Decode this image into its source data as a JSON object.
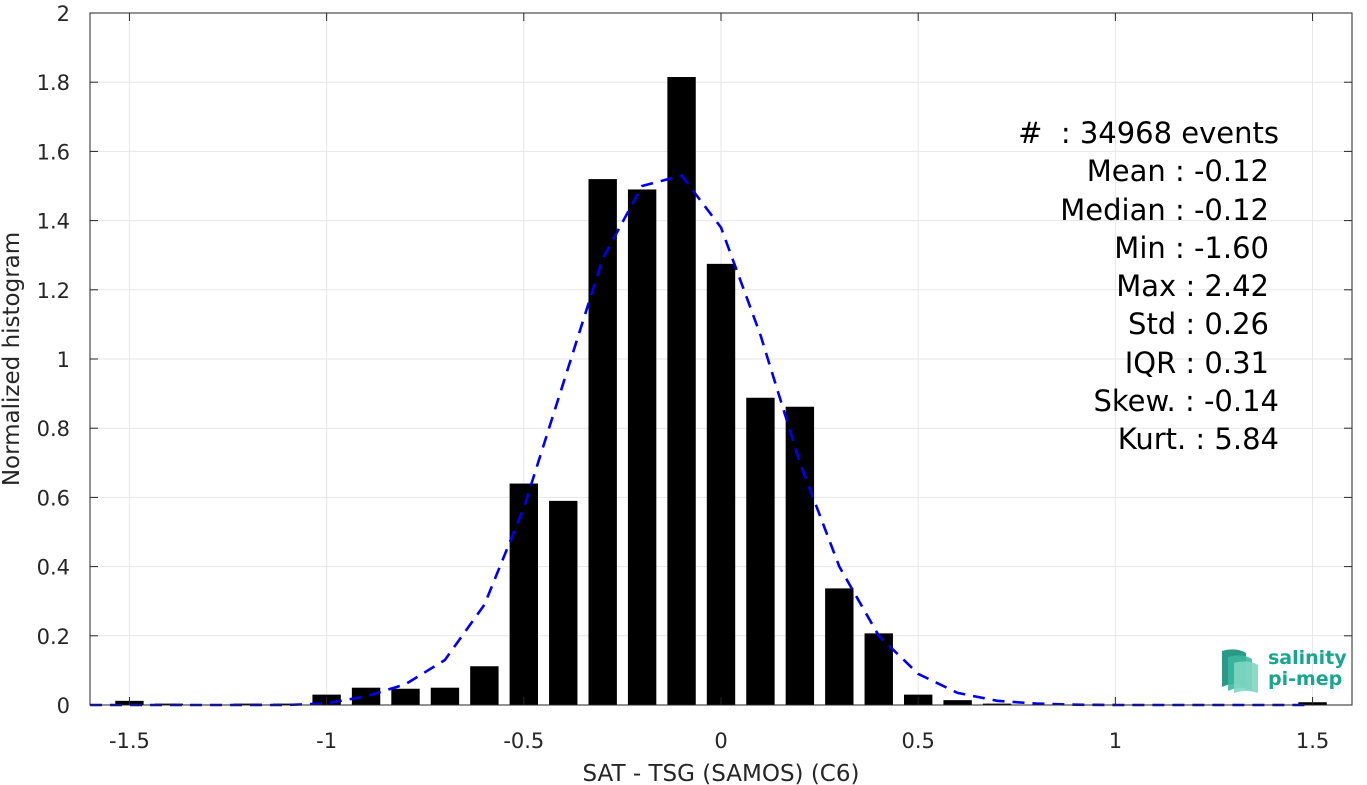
{
  "chart_data": {
    "type": "bar",
    "xlabel": "SAT - TSG (SAMOS) (C6)",
    "ylabel": "Normalized histogram",
    "xlim": [
      -1.6,
      1.6
    ],
    "ylim": [
      0,
      2
    ],
    "xticks": [
      "-1.5",
      "-1",
      "-0.5",
      "0",
      "0.5",
      "1",
      "1.5"
    ],
    "xtick_values": [
      -1.5,
      -1,
      -0.5,
      0,
      0.5,
      1,
      1.5
    ],
    "yticks": [
      "0",
      "0.2",
      "0.4",
      "0.6",
      "0.8",
      "1",
      "1.2",
      "1.4",
      "1.6",
      "1.8",
      "2"
    ],
    "ytick_values": [
      0,
      0.2,
      0.4,
      0.6,
      0.8,
      1,
      1.2,
      1.4,
      1.6,
      1.8,
      2
    ],
    "grid": true,
    "bar_width": 0.072,
    "bars": {
      "x": [
        -1.5,
        -1.4,
        -1.2,
        -1.1,
        -1.0,
        -0.9,
        -0.8,
        -0.7,
        -0.6,
        -0.5,
        -0.4,
        -0.3,
        -0.2,
        -0.1,
        0.0,
        0.1,
        0.2,
        0.3,
        0.4,
        0.5,
        0.6,
        0.7,
        1.5
      ],
      "values": [
        0.012,
        0.004,
        0.004,
        0.004,
        0.03,
        0.05,
        0.047,
        0.05,
        0.112,
        0.64,
        0.59,
        1.52,
        1.49,
        1.815,
        1.275,
        0.888,
        0.862,
        0.337,
        0.207,
        0.03,
        0.014,
        0.004,
        0.008
      ],
      "color": "#000000"
    },
    "fit_curve": {
      "style": "dashed",
      "color": "#0000ee",
      "x": [
        -1.6,
        -1.5,
        -1.4,
        -1.3,
        -1.2,
        -1.1,
        -1.0,
        -0.9,
        -0.8,
        -0.7,
        -0.6,
        -0.5,
        -0.4,
        -0.3,
        -0.2,
        -0.1,
        0.0,
        0.1,
        0.2,
        0.3,
        0.4,
        0.5,
        0.6,
        0.7,
        0.8,
        0.9,
        1.0,
        1.1,
        1.2,
        1.3,
        1.4,
        1.5
      ],
      "y": [
        0,
        0,
        0,
        0,
        0,
        0,
        0.005,
        0.025,
        0.06,
        0.13,
        0.29,
        0.57,
        0.93,
        1.29,
        1.5,
        1.53,
        1.38,
        1.07,
        0.7,
        0.4,
        0.2,
        0.09,
        0.035,
        0.012,
        0.004,
        0.001,
        0,
        0,
        0,
        0,
        0,
        0
      ]
    }
  },
  "stats": {
    "lines": [
      "#  : 34968 events",
      "Mean : -0.12",
      "Median : -0.12",
      "Min : -1.60",
      "Max : 2.42",
      "Std : 0.26",
      "IQR : 0.31",
      "Skew. : -0.14",
      "Kurt. : 5.84"
    ]
  },
  "logo": {
    "line1": "salinity",
    "line2": "pi-mep",
    "color": "#1aa58f"
  }
}
